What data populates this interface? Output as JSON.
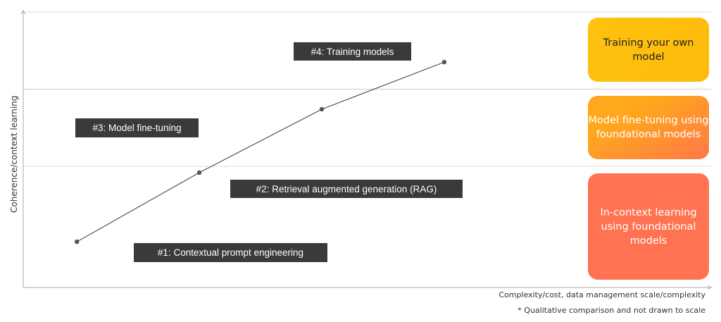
{
  "chart_data": {
    "type": "line",
    "title": "",
    "xlabel": "Complexity/cost, data management scale/complexity",
    "ylabel": "Coherence/context learning",
    "xlim": [
      0,
      100
    ],
    "ylim": [
      0,
      100
    ],
    "grid": false,
    "x": [
      7.8,
      25.6,
      43.4,
      61.2
    ],
    "y": [
      16.6,
      41.7,
      64.7,
      81.8
    ],
    "point_labels": [
      "#1: Contextual prompt engineering",
      "#2: Retrieval augmented generation (RAG)",
      "#3: Model fine-tuning",
      "#4: Training models"
    ],
    "thresholds": [
      {
        "y": 72,
        "style": "solid"
      },
      {
        "y": 44,
        "style": "dotted"
      }
    ],
    "zones": [
      {
        "label": "Training your own model",
        "color": "#FFC20E"
      },
      {
        "label": "Model fine-tuning using foundational models",
        "color": "#FF9A2E"
      },
      {
        "label": "In-context learning using foundational models",
        "color": "#FF7352"
      }
    ],
    "footnote": "* Qualitative comparison and not drawn to scale",
    "line_color": "#333333",
    "marker_color": "#4a5470"
  }
}
